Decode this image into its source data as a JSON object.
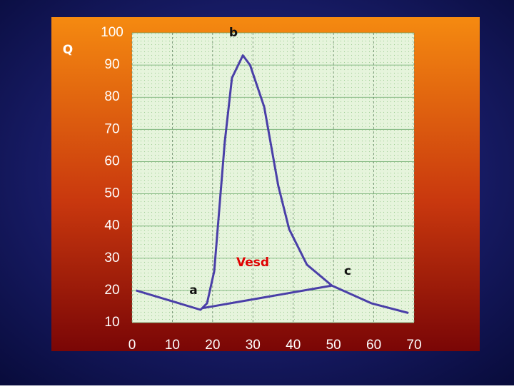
{
  "chart_data": {
    "type": "line",
    "y_label": "Q",
    "annotations": [
      "b",
      "a",
      "c",
      "Vesd"
    ],
    "series": [
      {
        "color": "#4a3fa8",
        "x": [
          1,
          17,
          18.6,
          20.4,
          23,
          24.8,
          27.5,
          29.3,
          32.8,
          36.3,
          39,
          43.4,
          49.6,
          59.4,
          68.6
        ],
        "values": [
          20,
          14,
          16,
          26,
          66,
          86,
          93,
          90,
          77,
          52.5,
          39,
          28,
          21.5,
          16,
          13
        ]
      },
      {
        "color": "#4a3fa8",
        "x": [
          17.5,
          49.6
        ],
        "values": [
          14.5,
          21.5
        ]
      }
    ],
    "xlim": [
      0,
      70
    ],
    "xticks": [
      0,
      10,
      20,
      30,
      40,
      50,
      60,
      70
    ],
    "ylim": [
      10,
      100
    ],
    "yticks": [
      10,
      20,
      30,
      40,
      50,
      60,
      70,
      80,
      90,
      100
    ],
    "grid": true
  }
}
